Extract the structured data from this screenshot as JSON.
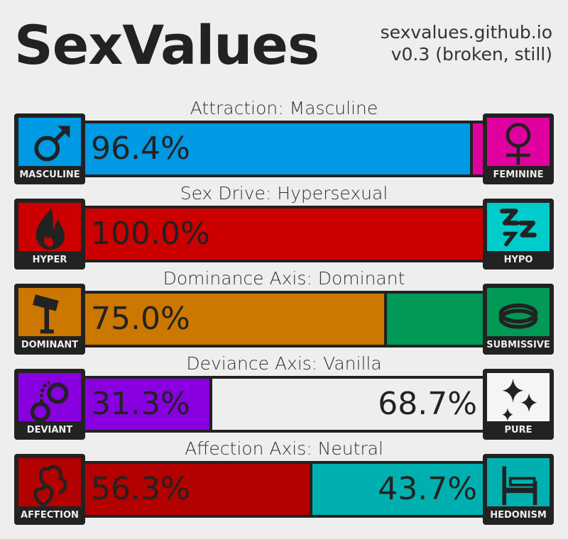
{
  "header": {
    "title": "SexValues",
    "site": "sexvalues.github.io",
    "version": "v0.3 (broken, still)"
  },
  "axes": [
    {
      "title": "Attraction: Masculine",
      "left": {
        "label": "MASCULINE",
        "icon": "male-symbol-icon",
        "color": "#0099e3",
        "pct": 96.4,
        "text": "96.4%"
      },
      "right": {
        "label": "FEMININE",
        "icon": "female-symbol-icon",
        "color": "#e000a0",
        "pct": 3.6,
        "text": ""
      }
    },
    {
      "title": "Sex Drive: Hypersexual",
      "left": {
        "label": "HYPER",
        "icon": "fire-icon",
        "color": "#cc0000",
        "pct": 100.0,
        "text": "100.0%"
      },
      "right": {
        "label": "HYPO",
        "icon": "sleep-zzz-icon",
        "color": "#00cccc",
        "pct": 0.0,
        "text": ""
      }
    },
    {
      "title": "Dominance Axis: Dominant",
      "left": {
        "label": "DOMINANT",
        "icon": "gavel-icon",
        "color": "#cc7700",
        "pct": 75.0,
        "text": "75.0%"
      },
      "right": {
        "label": "SUBMISSIVE",
        "icon": "collar-icon",
        "color": "#009955",
        "pct": 25.0,
        "text": ""
      }
    },
    {
      "title": "Deviance Axis: Vanilla",
      "left": {
        "label": "DEVIANT",
        "icon": "handcuffs-icon",
        "color": "#8800e0",
        "pct": 31.3,
        "text": "31.3%"
      },
      "right": {
        "label": "PURE",
        "icon": "sparkles-icon",
        "color": "#eeeeee",
        "pct": 68.7,
        "text": "68.7%"
      }
    },
    {
      "title": "Affection Axis: Neutral",
      "left": {
        "label": "AFFECTION",
        "icon": "hearts-icon",
        "color": "#b30000",
        "pct": 56.3,
        "text": "56.3%"
      },
      "right": {
        "label": "HEDONISM",
        "icon": "bed-icon",
        "color": "#00b0b0",
        "pct": 43.7,
        "text": "43.7%"
      }
    }
  ]
}
